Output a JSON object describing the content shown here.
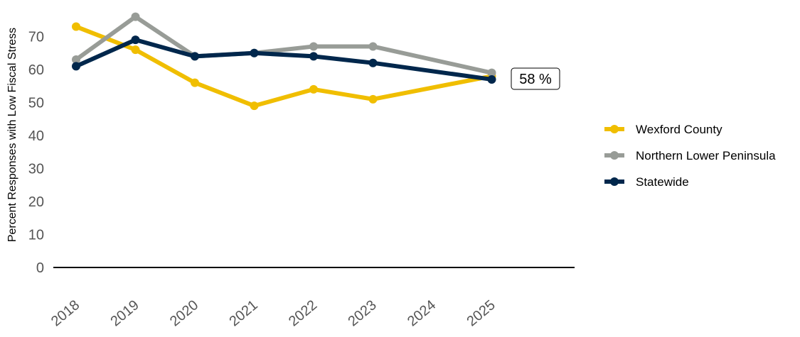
{
  "chart_data": {
    "type": "line",
    "title": "",
    "xlabel": "",
    "ylabel": "Percent Responses with Low Fiscal Stress",
    "categories": [
      "2018",
      "2019",
      "2020",
      "2021",
      "2022",
      "2023",
      "2024",
      "2025"
    ],
    "ylim": [
      0,
      78
    ],
    "yticks": [
      0,
      10,
      20,
      30,
      40,
      50,
      60,
      70
    ],
    "grid": false,
    "legend_position": "right",
    "series": [
      {
        "name": "Wexford County",
        "color": "#F0BE00",
        "values": [
          73,
          66,
          56,
          49,
          54,
          51,
          null,
          58
        ]
      },
      {
        "name": "Northern Lower Peninsula",
        "color": "#989C97",
        "values": [
          63,
          76,
          64,
          65,
          67,
          67,
          null,
          59
        ]
      },
      {
        "name": "Statewide",
        "color": "#00274C",
        "values": [
          61,
          69,
          64,
          65,
          64,
          62,
          null,
          57
        ]
      }
    ],
    "annotation": {
      "text": "58 %",
      "series": "Wexford County",
      "category": "2025"
    }
  }
}
